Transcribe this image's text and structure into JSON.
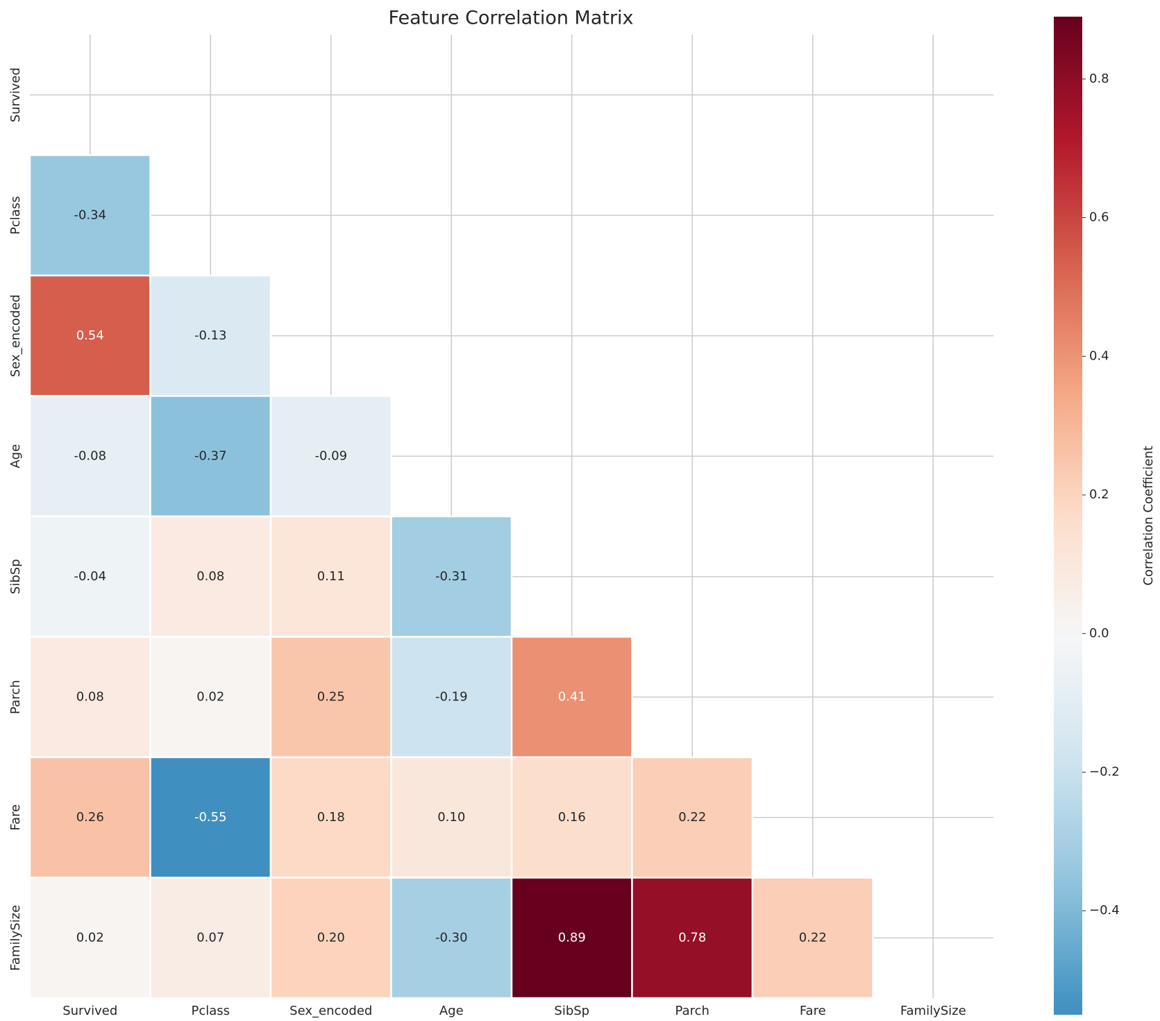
{
  "chart_data": {
    "type": "heatmap",
    "title": "Feature Correlation Matrix",
    "categories": [
      "Survived",
      "Pclass",
      "Sex_encoded",
      "Age",
      "SibSp",
      "Parch",
      "Fare",
      "FamilySize"
    ],
    "values": [
      [
        null,
        null,
        null,
        null,
        null,
        null,
        null,
        null
      ],
      [
        -0.34,
        null,
        null,
        null,
        null,
        null,
        null,
        null
      ],
      [
        0.54,
        -0.13,
        null,
        null,
        null,
        null,
        null,
        null
      ],
      [
        -0.08,
        -0.37,
        -0.09,
        null,
        null,
        null,
        null,
        null
      ],
      [
        -0.04,
        0.08,
        0.11,
        -0.31,
        null,
        null,
        null,
        null
      ],
      [
        0.08,
        0.02,
        0.25,
        -0.19,
        0.41,
        null,
        null,
        null
      ],
      [
        0.26,
        -0.55,
        0.18,
        0.1,
        0.16,
        0.22,
        null,
        null
      ],
      [
        0.02,
        0.07,
        0.2,
        -0.3,
        0.89,
        0.78,
        0.22,
        null
      ]
    ],
    "value_labels": [
      [
        null,
        null,
        null,
        null,
        null,
        null,
        null,
        null
      ],
      [
        "-0.34",
        null,
        null,
        null,
        null,
        null,
        null,
        null
      ],
      [
        "0.54",
        "-0.13",
        null,
        null,
        null,
        null,
        null,
        null
      ],
      [
        "-0.08",
        "-0.37",
        "-0.09",
        null,
        null,
        null,
        null,
        null
      ],
      [
        "-0.04",
        "0.08",
        "0.11",
        "-0.31",
        null,
        null,
        null,
        null
      ],
      [
        "0.08",
        "0.02",
        "0.25",
        "-0.19",
        "0.41",
        null,
        null,
        null
      ],
      [
        "0.26",
        "-0.55",
        "0.18",
        "0.10",
        "0.16",
        "0.22",
        null,
        null
      ],
      [
        "0.02",
        "0.07",
        "0.20",
        "-0.30",
        "0.89",
        "0.78",
        "0.22",
        null
      ]
    ],
    "colormap": "RdBu_r",
    "center": 0,
    "colorbar_lim": [
      -0.55,
      0.89
    ],
    "colorbar_ticks": [
      {
        "value": -0.4,
        "label": "−0.4"
      },
      {
        "value": -0.2,
        "label": "−0.2"
      },
      {
        "value": 0,
        "label": "0.0"
      },
      0.2,
      0.4,
      0.6,
      0.8
    ],
    "colorbar_label": "Correlation Coefficient",
    "grid": true
  }
}
